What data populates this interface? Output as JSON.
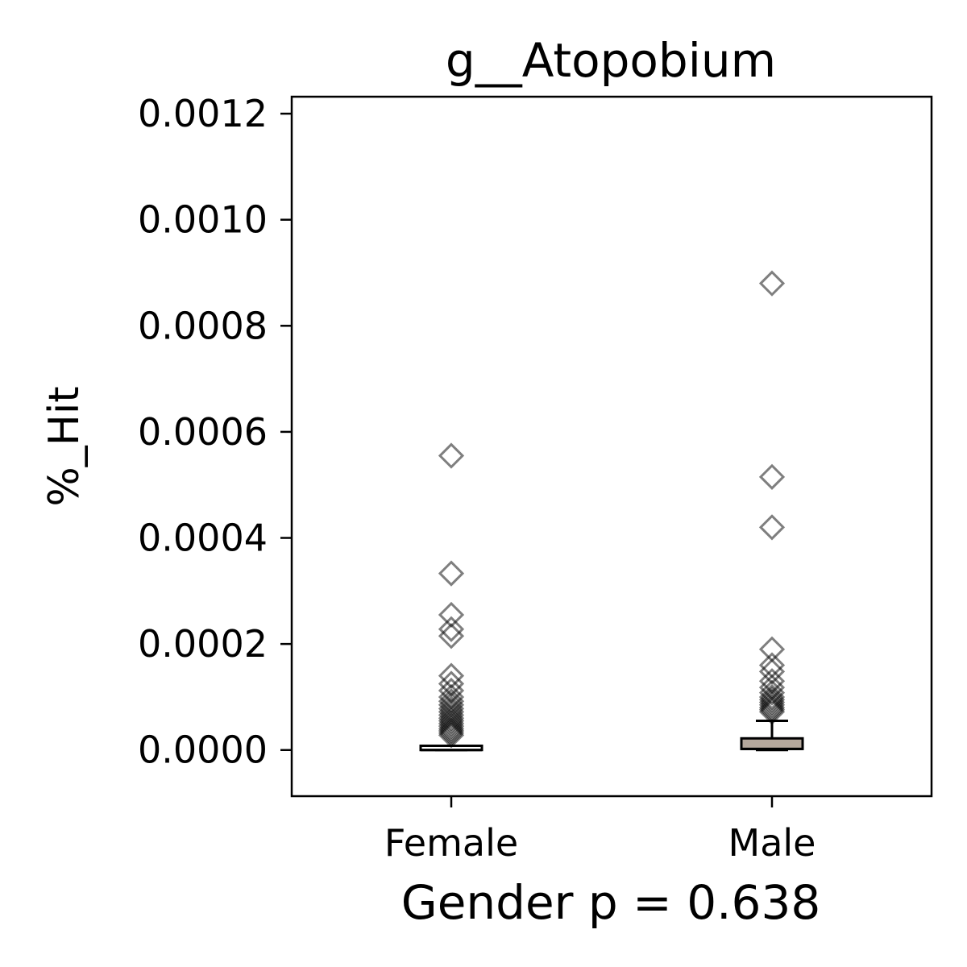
{
  "chart_data": {
    "type": "box",
    "title": "g__Atopobium",
    "xlabel": "Gender p = 0.638",
    "ylabel": "%_Hit",
    "categories": [
      "Female",
      "Male"
    ],
    "ylim": [
      -8.7e-05,
      0.001232
    ],
    "yticks": [
      "0.0000",
      "0.0002",
      "0.0004",
      "0.0006",
      "0.0008",
      "0.0010",
      "0.0012"
    ],
    "ytick_values": [
      0,
      0.0002,
      0.0004,
      0.0006,
      0.0008,
      0.001,
      0.0012
    ],
    "grid": false,
    "legend": "none",
    "boxes": [
      {
        "category": "Female",
        "whisker_low": 0,
        "q1": 0,
        "median": 0,
        "q3": 8e-06,
        "whisker_high": 8e-06,
        "fill": "#ffffff",
        "outliers": [
          0.000555,
          0.000333,
          0.000255,
          0.000228,
          0.000215,
          0.00014,
          0.000125,
          0.000112,
          0.0001,
          9.2e-05,
          8.5e-05,
          7.8e-05,
          7.2e-05,
          6.6e-05,
          6e-05,
          5.5e-05,
          5e-05,
          4.5e-05,
          4e-05,
          3.6e-05,
          3.2e-05,
          2.8e-05
        ]
      },
      {
        "category": "Male",
        "whisker_low": 0,
        "q1": 2e-06,
        "median": 2e-06,
        "q3": 2.2e-05,
        "whisker_high": 5.5e-05,
        "fill": "#b5a89c",
        "outliers": [
          0.00088,
          0.000515,
          0.00042,
          0.00019,
          0.00016,
          0.000148,
          0.00013,
          0.000118,
          0.000108,
          0.0001,
          9.5e-05,
          9e-05,
          8.5e-05,
          8e-05,
          7.6e-05,
          7.2e-05
        ]
      }
    ],
    "colors": {
      "axis": "#000000",
      "outlier_stroke": "#000000",
      "outlier_opacity": "0.5"
    }
  }
}
